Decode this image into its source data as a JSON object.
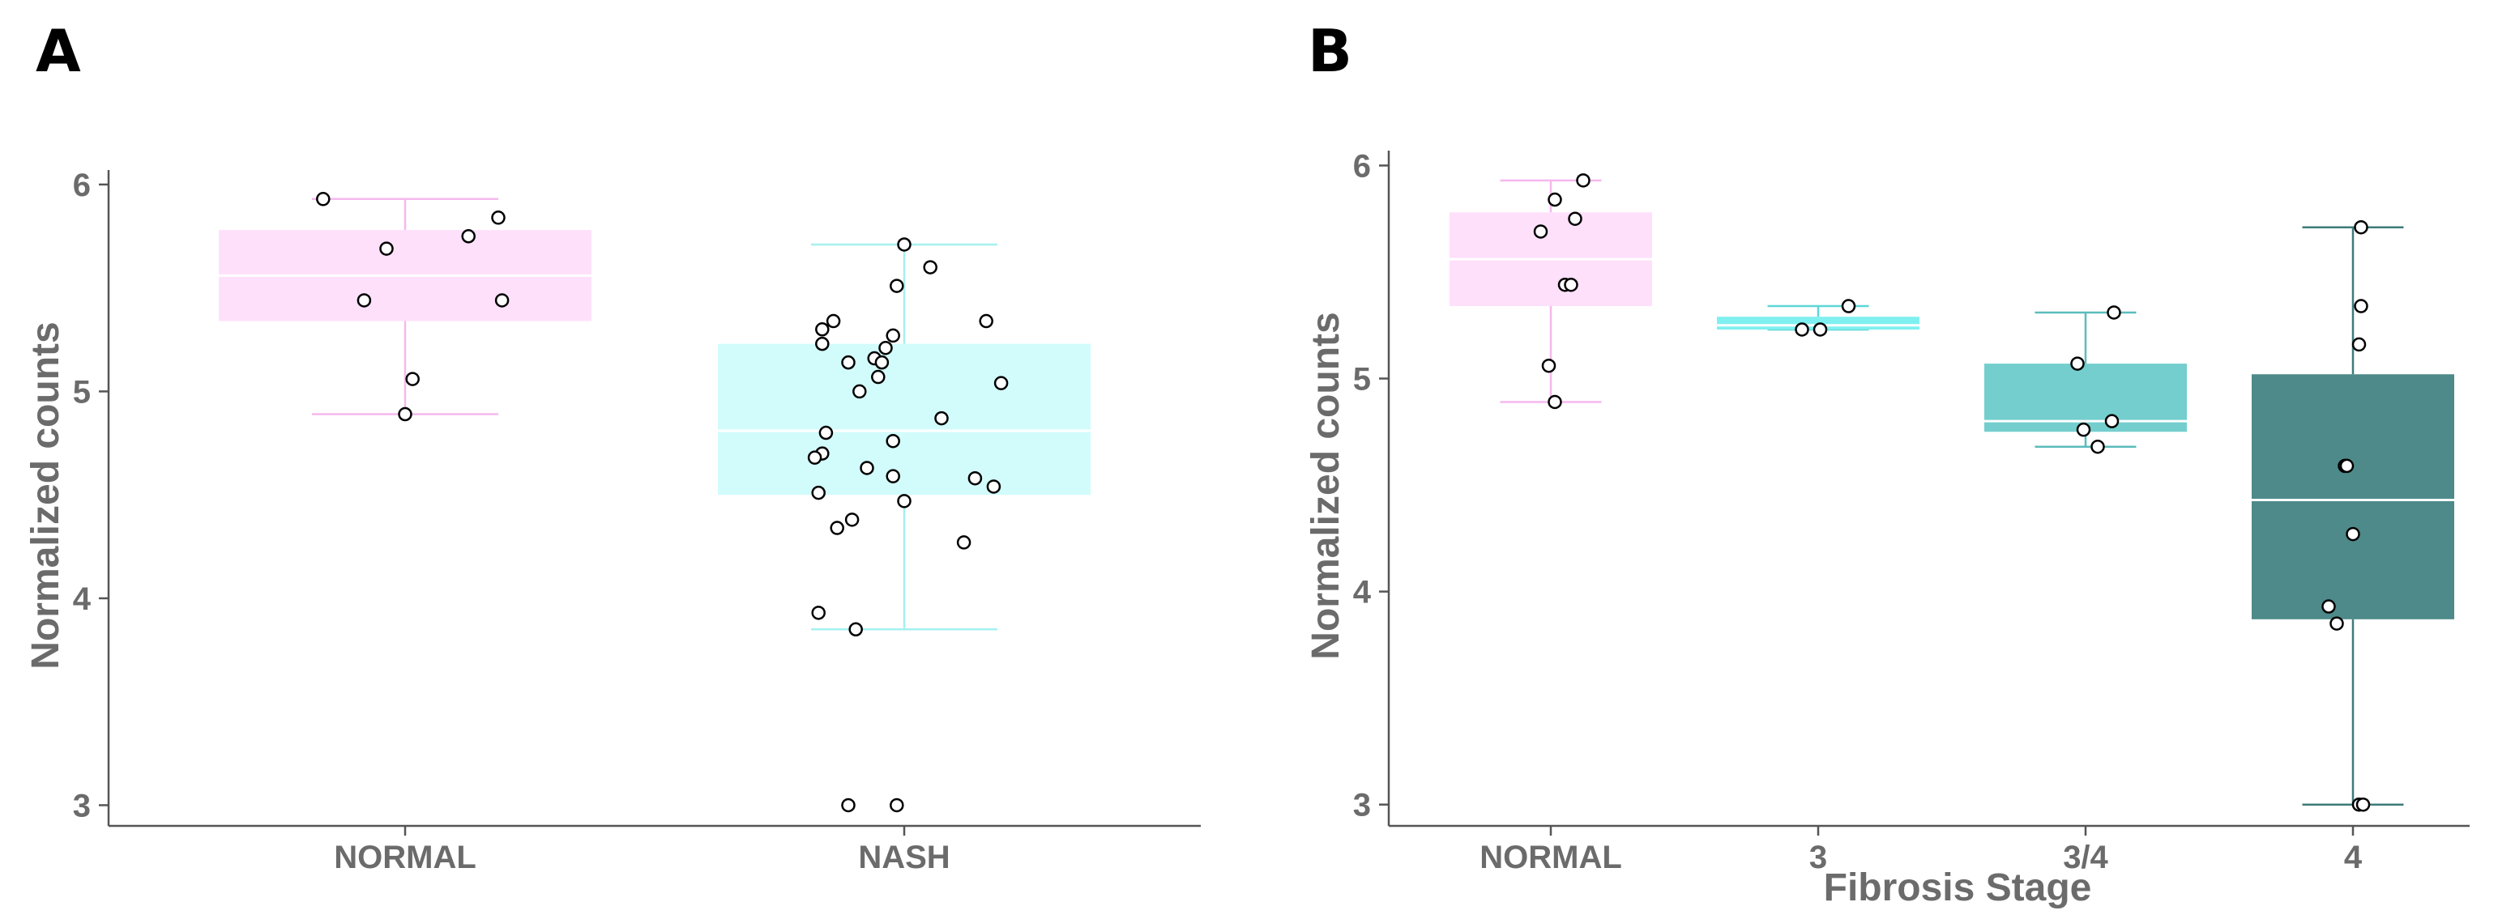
{
  "chart_data": [
    {
      "type": "box",
      "panel_label": "A",
      "title": "",
      "xlabel": "",
      "ylabel": "Normalized counts",
      "ylim": [
        2.9,
        6.07
      ],
      "yticks": [
        3,
        4,
        5,
        6
      ],
      "categories": [
        "NORMAL",
        "NASH"
      ],
      "series": [
        {
          "name": "NORMAL",
          "color": "#ffe0fb",
          "whisker_color": "#f5b8ee",
          "stats": {
            "min": 4.89,
            "q1": 5.34,
            "median": 5.56,
            "q3": 5.78,
            "max": 5.93
          },
          "points": [
            {
              "jitter": -0.22,
              "value": 5.93
            },
            {
              "jitter": -0.05,
              "value": 5.69
            },
            {
              "jitter": 0.17,
              "value": 5.75
            },
            {
              "jitter": 0.25,
              "value": 5.84
            },
            {
              "jitter": -0.11,
              "value": 5.44
            },
            {
              "jitter": 0.26,
              "value": 5.44
            },
            {
              "jitter": 0.02,
              "value": 5.06
            },
            {
              "jitter": 0.0,
              "value": 4.89
            }
          ]
        },
        {
          "name": "NASH",
          "color": "#d2fcfb",
          "whisker_color": "#a6f0f0",
          "stats": {
            "min": 3.85,
            "q1": 4.5,
            "median": 4.81,
            "q3": 5.23,
            "max": 5.71
          },
          "points": [
            {
              "jitter": 0.0,
              "value": 5.71
            },
            {
              "jitter": 0.07,
              "value": 5.6
            },
            {
              "jitter": -0.02,
              "value": 5.51
            },
            {
              "jitter": -0.19,
              "value": 5.34
            },
            {
              "jitter": 0.22,
              "value": 5.34
            },
            {
              "jitter": -0.22,
              "value": 5.3
            },
            {
              "jitter": -0.03,
              "value": 5.27
            },
            {
              "jitter": -0.22,
              "value": 5.23
            },
            {
              "jitter": -0.05,
              "value": 5.21
            },
            {
              "jitter": -0.08,
              "value": 5.16
            },
            {
              "jitter": -0.06,
              "value": 5.14
            },
            {
              "jitter": -0.15,
              "value": 5.14
            },
            {
              "jitter": -0.07,
              "value": 5.07
            },
            {
              "jitter": 0.26,
              "value": 5.04
            },
            {
              "jitter": -0.12,
              "value": 5.0
            },
            {
              "jitter": 0.1,
              "value": 4.87
            },
            {
              "jitter": -0.21,
              "value": 4.8
            },
            {
              "jitter": -0.03,
              "value": 4.76
            },
            {
              "jitter": -0.22,
              "value": 4.7
            },
            {
              "jitter": -0.24,
              "value": 4.68
            },
            {
              "jitter": -0.1,
              "value": 4.63
            },
            {
              "jitter": -0.03,
              "value": 4.59
            },
            {
              "jitter": 0.19,
              "value": 4.58
            },
            {
              "jitter": 0.24,
              "value": 4.54
            },
            {
              "jitter": -0.23,
              "value": 4.51
            },
            {
              "jitter": 0.0,
              "value": 4.47
            },
            {
              "jitter": -0.14,
              "value": 4.38
            },
            {
              "jitter": -0.18,
              "value": 4.34
            },
            {
              "jitter": 0.16,
              "value": 4.27
            },
            {
              "jitter": -0.23,
              "value": 3.93
            },
            {
              "jitter": -0.13,
              "value": 3.85
            },
            {
              "jitter": -0.15,
              "value": 3.0
            },
            {
              "jitter": -0.02,
              "value": 3.0
            }
          ]
        }
      ]
    },
    {
      "type": "box",
      "panel_label": "B",
      "title": "",
      "xlabel": "Fibrosis Stage",
      "ylabel": "Normalized counts",
      "ylim": [
        2.9,
        6.07
      ],
      "yticks": [
        3,
        4,
        5,
        6
      ],
      "categories": [
        "NORMAL",
        "3",
        "3/4",
        "4"
      ],
      "series": [
        {
          "name": "NORMAL",
          "color": "#ffe0fb",
          "whisker_color": "#f5b8ee",
          "stats": {
            "min": 4.89,
            "q1": 5.34,
            "median": 5.56,
            "q3": 5.78,
            "max": 5.93
          },
          "points": [
            {
              "jitter": 0.16,
              "value": 5.93
            },
            {
              "jitter": 0.02,
              "value": 5.84
            },
            {
              "jitter": 0.12,
              "value": 5.75
            },
            {
              "jitter": -0.05,
              "value": 5.69
            },
            {
              "jitter": 0.07,
              "value": 5.44
            },
            {
              "jitter": 0.1,
              "value": 5.44
            },
            {
              "jitter": -0.01,
              "value": 5.06
            },
            {
              "jitter": 0.02,
              "value": 4.89
            }
          ]
        },
        {
          "name": "3",
          "color": "#7ff0f0",
          "whisker_color": "#5fd6d6",
          "stats": {
            "min": 5.23,
            "q1": 5.23,
            "median": 5.25,
            "q3": 5.29,
            "max": 5.34
          },
          "points": [
            {
              "jitter": 0.15,
              "value": 5.34
            },
            {
              "jitter": -0.08,
              "value": 5.23
            },
            {
              "jitter": 0.01,
              "value": 5.23
            }
          ]
        },
        {
          "name": "3/4",
          "color": "#74cece",
          "whisker_color": "#5bbcbc",
          "stats": {
            "min": 4.68,
            "q1": 4.75,
            "median": 4.8,
            "q3": 5.07,
            "max": 5.31
          },
          "points": [
            {
              "jitter": 0.14,
              "value": 5.31
            },
            {
              "jitter": -0.04,
              "value": 5.07
            },
            {
              "jitter": 0.13,
              "value": 4.8
            },
            {
              "jitter": -0.01,
              "value": 4.76
            },
            {
              "jitter": 0.06,
              "value": 4.68
            }
          ]
        },
        {
          "name": "4",
          "color": "#4d8a89",
          "whisker_color": "#3e7b7a",
          "stats": {
            "min": 3.0,
            "q1": 3.87,
            "median": 4.43,
            "q3": 5.02,
            "max": 5.71
          },
          "points": [
            {
              "jitter": 0.04,
              "value": 5.71
            },
            {
              "jitter": 0.04,
              "value": 5.34
            },
            {
              "jitter": 0.03,
              "value": 5.16
            },
            {
              "jitter": -0.04,
              "value": 4.59
            },
            {
              "jitter": -0.03,
              "value": 4.59
            },
            {
              "jitter": 0.0,
              "value": 4.27
            },
            {
              "jitter": -0.12,
              "value": 3.93
            },
            {
              "jitter": -0.08,
              "value": 3.85
            },
            {
              "jitter": 0.03,
              "value": 3.0
            },
            {
              "jitter": 0.05,
              "value": 3.0
            }
          ]
        }
      ]
    }
  ]
}
